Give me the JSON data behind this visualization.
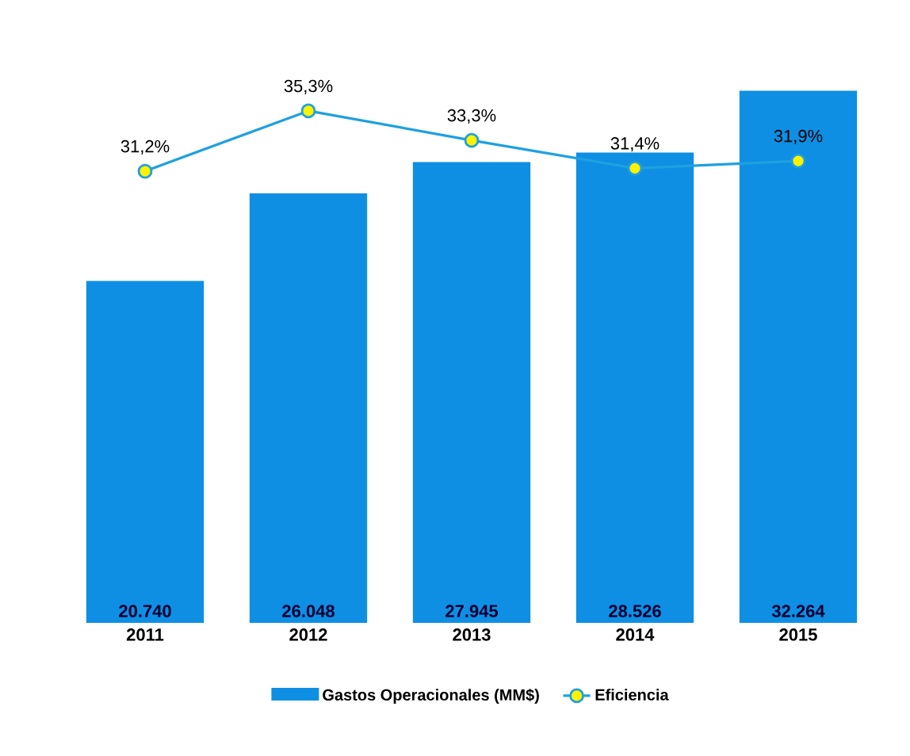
{
  "chart_data": {
    "type": "bar",
    "categories": [
      "2011",
      "2012",
      "2013",
      "2014",
      "2015"
    ],
    "series": [
      {
        "name": "Gastos Operacionales (MM$)",
        "color": "#0f8fe3",
        "values": [
          20740,
          26048,
          27945,
          28526,
          32264
        ],
        "value_labels": [
          "20.740",
          "26.048",
          "27.945",
          "28.526",
          "32.264"
        ]
      },
      {
        "name": "Eficiencia",
        "type": "line",
        "axis": "y2",
        "color": "#1fa0e0",
        "marker": "circle",
        "values": [
          31.2,
          35.3,
          33.3,
          31.4,
          31.9
        ],
        "value_labels": [
          "31,2%",
          "35,3%",
          "33,3%",
          "31,4%",
          "31,9%"
        ]
      }
    ],
    "legend": "bottom",
    "tick_labels": "x"
  }
}
